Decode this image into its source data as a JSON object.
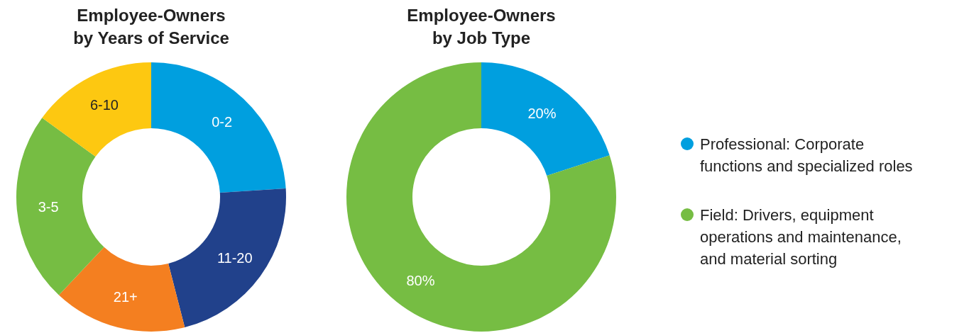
{
  "chart_data": [
    {
      "type": "donut",
      "title": "Employee-Owners\nby Years of Service",
      "categories": [
        "0-2",
        "11-20",
        "21+",
        "3-5",
        "6-10"
      ],
      "values": [
        24,
        22,
        16,
        23,
        15
      ],
      "colors": [
        "#009fdf",
        "#21418b",
        "#f47f20",
        "#76bd43",
        "#fdc811"
      ],
      "legend": false
    },
    {
      "type": "donut",
      "title": "Employee-Owners\nby Job Type",
      "categories": [
        "Professional: Corporate\nfunctions and specialized roles",
        "Field: Drivers, equipment\noperations and maintenance,\nand material sorting"
      ],
      "values": [
        20,
        80
      ],
      "colors": [
        "#009fdf",
        "#76bd43"
      ],
      "value_labels": [
        "20%",
        "80%"
      ],
      "legend": "right"
    }
  ]
}
